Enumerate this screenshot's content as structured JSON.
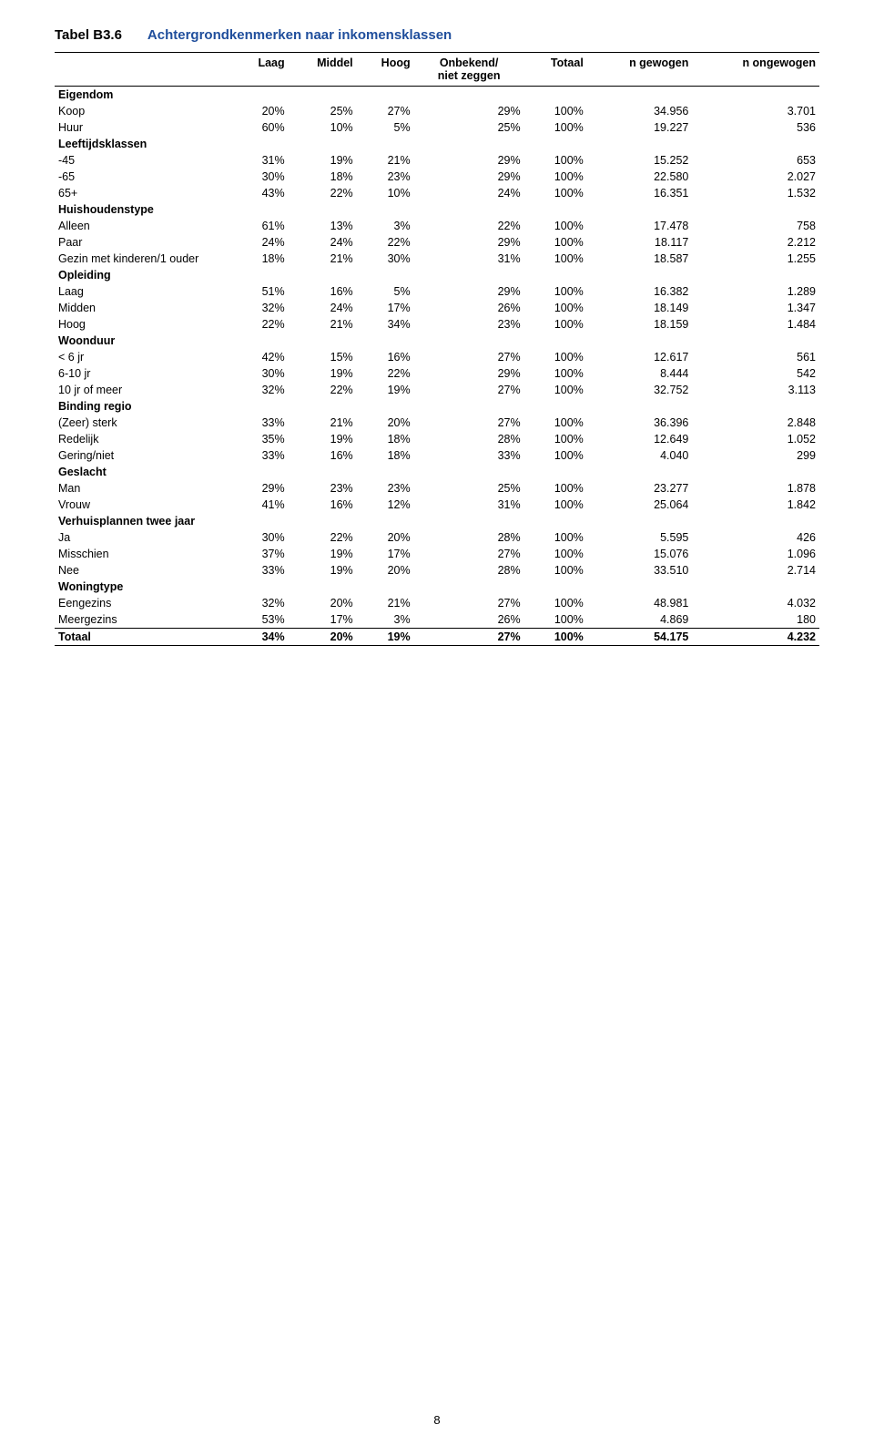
{
  "title_prefix": "Tabel B3.6",
  "title_text": "Achtergrondkenmerken naar inkomensklassen",
  "columns": [
    "",
    "Laag",
    "Middel",
    "Hoog",
    "Onbekend/\nniet zeggen",
    "Totaal",
    "n gewogen",
    "n ongewogen"
  ],
  "sections": [
    {
      "label": "Eigendom",
      "rows": [
        {
          "label": "Koop",
          "vals": [
            "20%",
            "25%",
            "27%",
            "29%",
            "100%",
            "34.956",
            "3.701"
          ]
        },
        {
          "label": "Huur",
          "vals": [
            "60%",
            "10%",
            "5%",
            "25%",
            "100%",
            "19.227",
            "536"
          ]
        }
      ]
    },
    {
      "label": "Leeftijdsklassen",
      "rows": [
        {
          "label": "-45",
          "vals": [
            "31%",
            "19%",
            "21%",
            "29%",
            "100%",
            "15.252",
            "653"
          ]
        },
        {
          "label": "-65",
          "vals": [
            "30%",
            "18%",
            "23%",
            "29%",
            "100%",
            "22.580",
            "2.027"
          ]
        },
        {
          "label": "65+",
          "vals": [
            "43%",
            "22%",
            "10%",
            "24%",
            "100%",
            "16.351",
            "1.532"
          ]
        }
      ]
    },
    {
      "label": "Huishoudenstype",
      "rows": [
        {
          "label": "Alleen",
          "vals": [
            "61%",
            "13%",
            "3%",
            "22%",
            "100%",
            "17.478",
            "758"
          ]
        },
        {
          "label": "Paar",
          "vals": [
            "24%",
            "24%",
            "22%",
            "29%",
            "100%",
            "18.117",
            "2.212"
          ]
        },
        {
          "label": "Gezin met kinderen/1 ouder",
          "vals": [
            "18%",
            "21%",
            "30%",
            "31%",
            "100%",
            "18.587",
            "1.255"
          ]
        }
      ]
    },
    {
      "label": "Opleiding",
      "rows": [
        {
          "label": "Laag",
          "vals": [
            "51%",
            "16%",
            "5%",
            "29%",
            "100%",
            "16.382",
            "1.289"
          ]
        },
        {
          "label": "Midden",
          "vals": [
            "32%",
            "24%",
            "17%",
            "26%",
            "100%",
            "18.149",
            "1.347"
          ]
        },
        {
          "label": "Hoog",
          "vals": [
            "22%",
            "21%",
            "34%",
            "23%",
            "100%",
            "18.159",
            "1.484"
          ]
        }
      ]
    },
    {
      "label": "Woonduur",
      "rows": [
        {
          "label": "< 6 jr",
          "vals": [
            "42%",
            "15%",
            "16%",
            "27%",
            "100%",
            "12.617",
            "561"
          ]
        },
        {
          "label": "6-10 jr",
          "vals": [
            "30%",
            "19%",
            "22%",
            "29%",
            "100%",
            "8.444",
            "542"
          ]
        },
        {
          "label": "10 jr of meer",
          "vals": [
            "32%",
            "22%",
            "19%",
            "27%",
            "100%",
            "32.752",
            "3.113"
          ]
        }
      ]
    },
    {
      "label": "Binding regio",
      "rows": [
        {
          "label": "(Zeer) sterk",
          "vals": [
            "33%",
            "21%",
            "20%",
            "27%",
            "100%",
            "36.396",
            "2.848"
          ]
        },
        {
          "label": "Redelijk",
          "vals": [
            "35%",
            "19%",
            "18%",
            "28%",
            "100%",
            "12.649",
            "1.052"
          ]
        },
        {
          "label": "Gering/niet",
          "vals": [
            "33%",
            "16%",
            "18%",
            "33%",
            "100%",
            "4.040",
            "299"
          ]
        }
      ]
    },
    {
      "label": "Geslacht",
      "rows": [
        {
          "label": "Man",
          "vals": [
            "29%",
            "23%",
            "23%",
            "25%",
            "100%",
            "23.277",
            "1.878"
          ]
        },
        {
          "label": "Vrouw",
          "vals": [
            "41%",
            "16%",
            "12%",
            "31%",
            "100%",
            "25.064",
            "1.842"
          ]
        }
      ]
    },
    {
      "label": "Verhuisplannen twee jaar",
      "rows": [
        {
          "label": "Ja",
          "vals": [
            "30%",
            "22%",
            "20%",
            "28%",
            "100%",
            "5.595",
            "426"
          ]
        },
        {
          "label": "Misschien",
          "vals": [
            "37%",
            "19%",
            "17%",
            "27%",
            "100%",
            "15.076",
            "1.096"
          ]
        },
        {
          "label": "Nee",
          "vals": [
            "33%",
            "19%",
            "20%",
            "28%",
            "100%",
            "33.510",
            "2.714"
          ]
        }
      ]
    },
    {
      "label": "Woningtype",
      "rows": [
        {
          "label": "Eengezins",
          "vals": [
            "32%",
            "20%",
            "21%",
            "27%",
            "100%",
            "48.981",
            "4.032"
          ]
        },
        {
          "label": "Meergezins",
          "vals": [
            "53%",
            "17%",
            "3%",
            "26%",
            "100%",
            "4.869",
            "180"
          ]
        }
      ]
    }
  ],
  "total_row": {
    "label": "Totaal",
    "vals": [
      "34%",
      "20%",
      "19%",
      "27%",
      "100%",
      "54.175",
      "4.232"
    ]
  },
  "page_number": "8",
  "style": {
    "title_color": "#1f4e9c",
    "text_color": "#000000",
    "bg_color": "#ffffff",
    "base_fontsize": 12.5,
    "title_fontsize": 15,
    "col_widths": [
      "190px",
      "auto",
      "auto",
      "auto",
      "auto",
      "auto",
      "auto",
      "auto"
    ],
    "border_color": "#000000",
    "border_top_heavy": "1.5px",
    "border_thin": "1px"
  }
}
